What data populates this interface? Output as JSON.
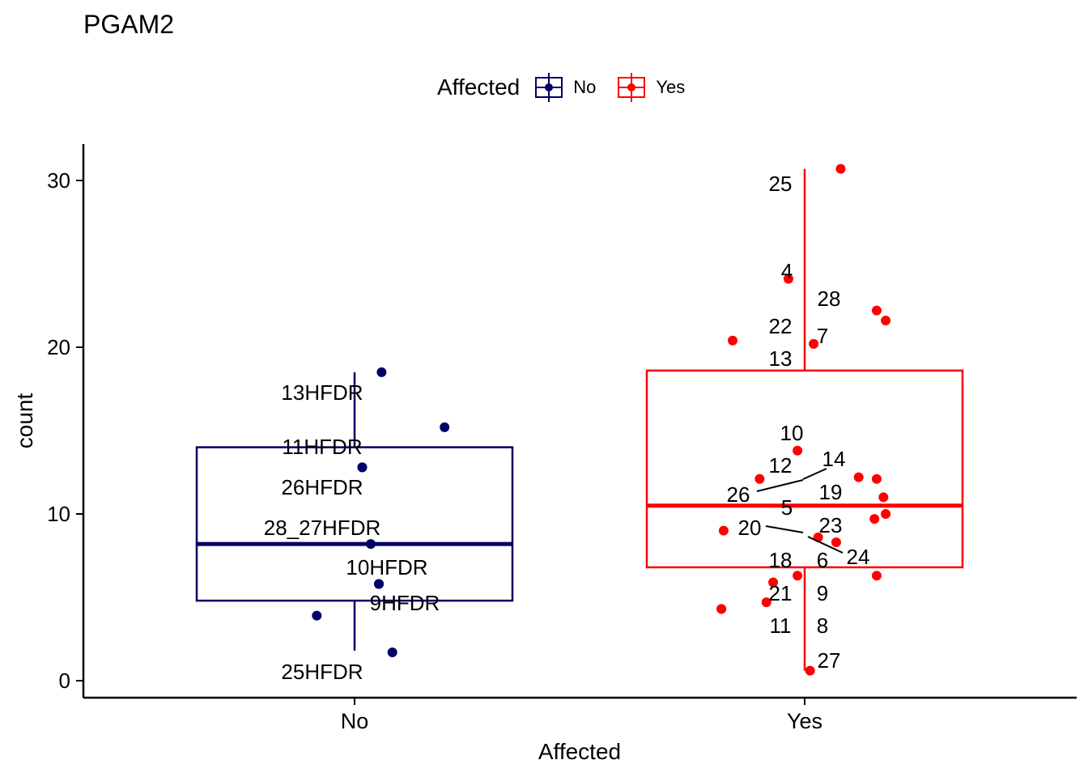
{
  "chart_data": {
    "type": "boxplot",
    "title": "PGAM2",
    "xlabel": "Affected",
    "ylabel": "count",
    "ylim": [
      -1,
      32
    ],
    "y_ticks": [
      0,
      10,
      20,
      30
    ],
    "categories": [
      "No",
      "Yes"
    ],
    "legend": {
      "title": "Affected",
      "position": "top",
      "entries": [
        "No",
        "Yes"
      ]
    },
    "colors": {
      "No": "#000066",
      "Yes": "#ff0000",
      "axis": "#000000",
      "label_text": "#000000"
    },
    "groups": [
      {
        "name": "No",
        "box": {
          "q1": 4.8,
          "median": 8.2,
          "q3": 14.0,
          "whisker_low": 1.8,
          "whisker_high": 18.5
        },
        "points": [
          {
            "label": "13HFDR",
            "y": 18.5,
            "jitter": 0.06
          },
          {
            "label": "",
            "y": 15.2,
            "jitter": 0.2
          },
          {
            "label": "11HFDR",
            "y": 12.8,
            "jitter": 0.017
          },
          {
            "label": "26HFDR",
            "y": 12.8,
            "jitter": 0.017
          },
          {
            "label": "28_27HFDR",
            "y": 8.2,
            "jitter": 0.036
          },
          {
            "label": "10HFDR",
            "y": 5.8,
            "jitter": 0.054
          },
          {
            "label": "9HFDR",
            "y": 5.8,
            "jitter": 0.054
          },
          {
            "label": "",
            "y": 3.9,
            "jitter": -0.084
          },
          {
            "label": "25HFDR",
            "y": 1.7,
            "jitter": 0.084
          }
        ]
      },
      {
        "name": "Yes",
        "box": {
          "q1": 6.8,
          "median": 10.5,
          "q3": 18.6,
          "whisker_low": 0.6,
          "whisker_high": 30.7
        },
        "points": [
          {
            "label": "25",
            "y": 30.7,
            "jitter": 0.08
          },
          {
            "label": "4",
            "y": 24.1,
            "jitter": -0.036
          },
          {
            "label": "28",
            "y": 22.2,
            "jitter": 0.16
          },
          {
            "label": "",
            "y": 21.6,
            "jitter": 0.18
          },
          {
            "label": "22",
            "y": 20.4,
            "jitter": -0.16
          },
          {
            "label": "7",
            "y": 20.2,
            "jitter": 0.02
          },
          {
            "label": "13",
            "y": 20.2,
            "jitter": 0.02
          },
          {
            "label": "10",
            "y": 13.8,
            "jitter": -0.016
          },
          {
            "label": "12",
            "y": 12.1,
            "jitter": -0.1
          },
          {
            "label": "14",
            "y": 12.2,
            "jitter": 0.12
          },
          {
            "label": "",
            "y": 12.1,
            "jitter": 0.16
          },
          {
            "label": "19",
            "y": 11.0,
            "jitter": 0.175
          },
          {
            "label": "26",
            "y": 10.0,
            "jitter": 0.18
          },
          {
            "label": "5",
            "y": 9.7,
            "jitter": 0.155
          },
          {
            "label": "20",
            "y": 9.0,
            "jitter": -0.18
          },
          {
            "label": "23",
            "y": 8.6,
            "jitter": 0.03
          },
          {
            "label": "24",
            "y": 8.3,
            "jitter": 0.07
          },
          {
            "label": "18",
            "y": 6.3,
            "jitter": -0.016
          },
          {
            "label": "6",
            "y": 6.3,
            "jitter": 0.16
          },
          {
            "label": "21",
            "y": 5.9,
            "jitter": -0.07
          },
          {
            "label": "9",
            "y": 4.7,
            "jitter": -0.085
          },
          {
            "label": "11",
            "y": 4.3,
            "jitter": -0.185
          },
          {
            "label": "8",
            "y": 4.3,
            "jitter": -0.185
          },
          {
            "label": "27",
            "y": 0.6,
            "jitter": 0.012
          }
        ]
      }
    ]
  }
}
